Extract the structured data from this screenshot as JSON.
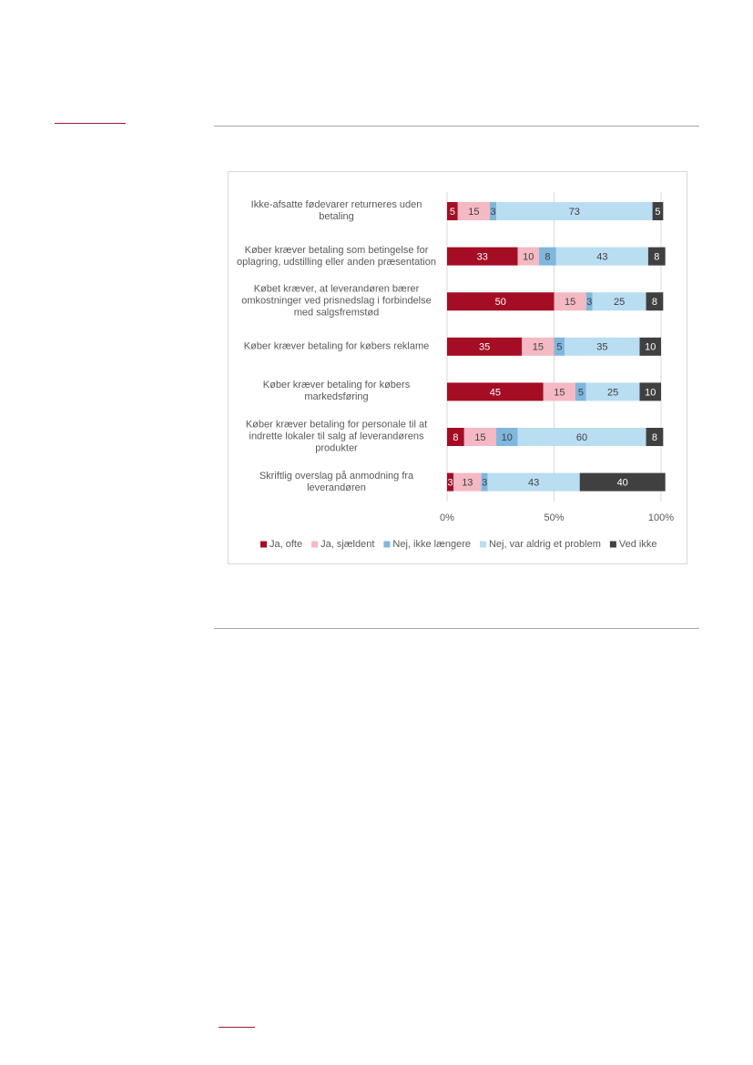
{
  "chart_data": {
    "type": "stacked-bar-horizontal",
    "categories": [
      "Ikke-afsatte fødevarer returneres uden betaling",
      "Køber kræver betaling som betingelse for oplagring, udstilling eller anden præsentation",
      "Købet kræver, at leverandøren bærer omkostninger ved prisnedslag i forbindelse med salgsfremstød",
      "Køber kræver betaling for købers reklame",
      "Køber kræver betaling for købers markedsføring",
      "Køber kræver betaling for personale til at indrette lokaler til salg af leverandørens produkter",
      "Skriftlig overslag på anmodning fra leverandøren"
    ],
    "series": [
      {
        "name": "Ja, ofte",
        "color": "#a50d24",
        "label_color": "#ffffff",
        "values": [
          5,
          33,
          50,
          35,
          45,
          8,
          3
        ]
      },
      {
        "name": "Ja, sjældent",
        "color": "#f4b9c2",
        "label_color": "#404040",
        "values": [
          15,
          10,
          15,
          15,
          15,
          15,
          13
        ]
      },
      {
        "name": "Nej, ikke længere",
        "color": "#7fb7dd",
        "label_color": "#404040",
        "values": [
          3,
          8,
          3,
          5,
          5,
          10,
          3
        ]
      },
      {
        "name": "Nej, var aldrig et problem",
        "color": "#b9ddf1",
        "label_color": "#404040",
        "values": [
          73,
          43,
          25,
          35,
          25,
          60,
          43
        ]
      },
      {
        "name": "Ved ikke",
        "color": "#404040",
        "label_color": "#ffffff",
        "values": [
          5,
          8,
          8,
          10,
          10,
          8,
          40
        ]
      }
    ],
    "xlim": [
      0,
      100
    ],
    "xticks": [
      {
        "value": 0,
        "label": "0%"
      },
      {
        "value": 50,
        "label": "50%"
      },
      {
        "value": 100,
        "label": "100%"
      }
    ],
    "grid": true,
    "legend": "bottom"
  }
}
